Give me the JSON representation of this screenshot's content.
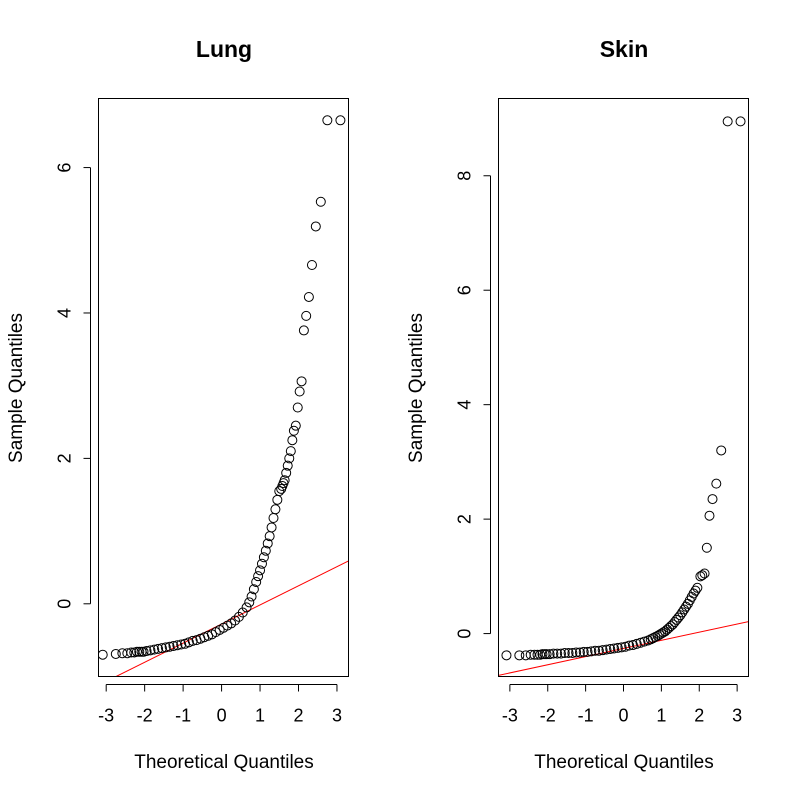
{
  "chart_data": [
    {
      "type": "scatter",
      "title": "Lung",
      "xlabel": "Theoretical Quantiles",
      "ylabel": "Sample Quantiles",
      "xlim": [
        -3.2,
        3.3
      ],
      "ylim": [
        -1.0,
        6.95
      ],
      "xticks": [
        -3,
        -2,
        -1,
        0,
        1,
        2,
        3
      ],
      "xtick_labels": [
        "-3",
        "-2",
        "-1",
        "0",
        "1",
        "2",
        "3"
      ],
      "yticks": [
        0,
        2,
        4,
        6
      ],
      "ytick_labels": [
        "0",
        "2",
        "4",
        "6"
      ],
      "grid": false,
      "reference_line": {
        "x": [
          -3.2,
          3.3
        ],
        "y": [
          -1.12,
          0.59
        ],
        "color": "#ff0000"
      },
      "x": [
        -3.09,
        -2.75,
        -2.58,
        -2.45,
        -2.35,
        -2.27,
        -2.2,
        -2.14,
        -2.08,
        -2.03,
        -1.95,
        -1.85,
        -1.75,
        -1.65,
        -1.55,
        -1.45,
        -1.35,
        -1.25,
        -1.15,
        -1.05,
        -0.95,
        -0.85,
        -0.75,
        -0.65,
        -0.55,
        -0.45,
        -0.35,
        -0.25,
        -0.15,
        -0.05,
        0.05,
        0.15,
        0.25,
        0.35,
        0.45,
        0.55,
        0.65,
        0.72,
        0.78,
        0.84,
        0.9,
        0.95,
        1.0,
        1.05,
        1.1,
        1.15,
        1.2,
        1.25,
        1.3,
        1.35,
        1.4,
        1.45,
        1.5,
        1.55,
        1.58,
        1.61,
        1.64,
        1.68,
        1.72,
        1.76,
        1.8,
        1.84,
        1.88,
        1.93,
        1.98,
        2.03,
        2.08,
        2.14,
        2.2,
        2.27,
        2.35,
        2.45,
        2.58,
        2.75,
        3.09
      ],
      "y": [
        -0.7,
        -0.69,
        -0.68,
        -0.68,
        -0.67,
        -0.67,
        -0.66,
        -0.66,
        -0.66,
        -0.66,
        -0.65,
        -0.64,
        -0.63,
        -0.62,
        -0.61,
        -0.6,
        -0.59,
        -0.58,
        -0.57,
        -0.56,
        -0.55,
        -0.53,
        -0.51,
        -0.5,
        -0.48,
        -0.46,
        -0.44,
        -0.42,
        -0.39,
        -0.36,
        -0.33,
        -0.3,
        -0.27,
        -0.23,
        -0.18,
        -0.12,
        -0.05,
        0.02,
        0.1,
        0.2,
        0.3,
        0.38,
        0.46,
        0.55,
        0.64,
        0.73,
        0.83,
        0.93,
        1.05,
        1.18,
        1.3,
        1.43,
        1.55,
        1.58,
        1.62,
        1.66,
        1.7,
        1.8,
        1.9,
        2.0,
        2.1,
        2.25,
        2.38,
        2.45,
        2.7,
        2.92,
        3.06,
        3.76,
        3.96,
        4.22,
        4.66,
        5.19,
        5.53,
        6.65,
        6.65
      ],
      "legend": null
    },
    {
      "type": "scatter",
      "title": "Skin",
      "xlabel": "Theoretical Quantiles",
      "ylabel": "Sample Quantiles",
      "xlim": [
        -3.3,
        3.3
      ],
      "ylim": [
        -0.75,
        9.35
      ],
      "xticks": [
        -3,
        -2,
        -1,
        0,
        1,
        2,
        3
      ],
      "xtick_labels": [
        "-3",
        "-2",
        "-1",
        "0",
        "1",
        "2",
        "3"
      ],
      "yticks": [
        0,
        2,
        4,
        6,
        8
      ],
      "ytick_labels": [
        "0",
        "2",
        "4",
        "6",
        "8"
      ],
      "grid": false,
      "reference_line": {
        "x": [
          -3.3,
          3.3
        ],
        "y": [
          -0.73,
          0.21
        ],
        "color": "#ff0000"
      },
      "x": [
        -3.09,
        -2.75,
        -2.58,
        -2.45,
        -2.35,
        -2.27,
        -2.2,
        -2.14,
        -2.08,
        -2.03,
        -1.95,
        -1.85,
        -1.75,
        -1.65,
        -1.55,
        -1.45,
        -1.35,
        -1.25,
        -1.15,
        -1.05,
        -0.95,
        -0.85,
        -0.75,
        -0.65,
        -0.55,
        -0.45,
        -0.35,
        -0.25,
        -0.15,
        -0.05,
        0.05,
        0.15,
        0.25,
        0.35,
        0.45,
        0.55,
        0.65,
        0.72,
        0.78,
        0.84,
        0.9,
        0.95,
        1.0,
        1.05,
        1.1,
        1.15,
        1.2,
        1.25,
        1.3,
        1.35,
        1.4,
        1.45,
        1.5,
        1.55,
        1.6,
        1.65,
        1.7,
        1.75,
        1.8,
        1.85,
        1.9,
        1.95,
        2.03,
        2.08,
        2.14,
        2.2,
        2.27,
        2.35,
        2.45,
        2.58,
        2.75,
        3.09
      ],
      "y": [
        -0.38,
        -0.38,
        -0.38,
        -0.37,
        -0.37,
        -0.37,
        -0.37,
        -0.36,
        -0.36,
        -0.36,
        -0.36,
        -0.35,
        -0.35,
        -0.35,
        -0.34,
        -0.34,
        -0.34,
        -0.33,
        -0.33,
        -0.32,
        -0.32,
        -0.31,
        -0.3,
        -0.3,
        -0.29,
        -0.28,
        -0.27,
        -0.26,
        -0.25,
        -0.24,
        -0.23,
        -0.21,
        -0.2,
        -0.18,
        -0.16,
        -0.14,
        -0.12,
        -0.1,
        -0.08,
        -0.06,
        -0.04,
        -0.02,
        0.0,
        0.02,
        0.04,
        0.07,
        0.1,
        0.13,
        0.16,
        0.2,
        0.24,
        0.28,
        0.32,
        0.37,
        0.42,
        0.47,
        0.52,
        0.58,
        0.64,
        0.7,
        0.75,
        0.8,
        1.0,
        1.02,
        1.05,
        1.5,
        2.06,
        2.35,
        2.62,
        3.2,
        8.95,
        8.95
      ],
      "legend": null
    }
  ]
}
